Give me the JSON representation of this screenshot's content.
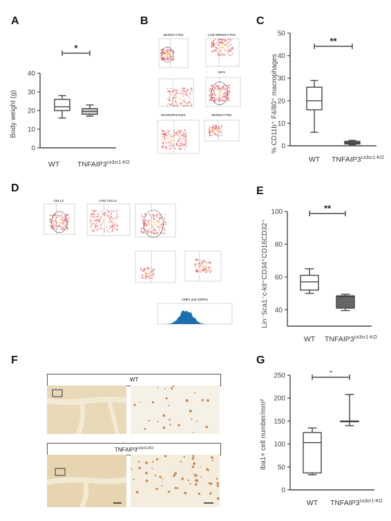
{
  "panel_labels": [
    "A",
    "B",
    "C",
    "D",
    "E",
    "F",
    "G"
  ],
  "chart_data": [
    {
      "panel": "A",
      "type": "box",
      "ylabel": "Body weight (g)",
      "ylim": [
        0,
        40
      ],
      "yticks": [
        0,
        10,
        20,
        30,
        40
      ],
      "categories": [
        "WT",
        "TNFAIP3"
      ],
      "category_superscripts": [
        "",
        "cx3cr1-KO"
      ],
      "boxes": [
        {
          "min": 16,
          "q1": 20,
          "median": 22,
          "q3": 26,
          "max": 28,
          "fill": "#ffffff"
        },
        {
          "min": 17,
          "q1": 18,
          "median": 19.5,
          "q3": 21,
          "max": 23,
          "fill": "#d0d0d0"
        }
      ],
      "significance": "*"
    },
    {
      "panel": "C",
      "type": "box",
      "ylabel": "% CD11b⁺ F4/80⁺ macrophages",
      "ylim": [
        0,
        50
      ],
      "yticks": [
        0,
        10,
        20,
        30,
        40,
        50
      ],
      "categories": [
        "WT",
        "TNFAIP3"
      ],
      "category_superscripts": [
        "",
        "cx3cr1-KO"
      ],
      "boxes": [
        {
          "min": 6,
          "q1": 16,
          "median": 20,
          "q3": 26,
          "max": 29,
          "fill": "#ffffff"
        },
        {
          "min": 0.5,
          "q1": 0.8,
          "median": 1.3,
          "q3": 2,
          "max": 2.4,
          "fill": "#666666"
        }
      ],
      "significance": "**"
    },
    {
      "panel": "E",
      "type": "box",
      "ylabel": "Lin⁻Sca1⁻c-kit⁺CD34⁺CD16CD32⁺",
      "ylim": [
        30,
        100
      ],
      "yticks": [
        40,
        60,
        80,
        100
      ],
      "categories": [
        "WT",
        "TNFAIP3"
      ],
      "category_superscripts": [
        "",
        "cx3cr1-KO"
      ],
      "boxes": [
        {
          "min": 50,
          "q1": 52,
          "median": 57,
          "q3": 61,
          "max": 65,
          "fill": "#ffffff"
        },
        {
          "min": 39.5,
          "q1": 41,
          "median": 48,
          "q3": 48.5,
          "max": 49.5,
          "fill": "#666666"
        }
      ],
      "significance": "**"
    },
    {
      "panel": "G",
      "type": "box",
      "ylabel": "Iba1+ cell number/mm²",
      "ylim": [
        0,
        250
      ],
      "yticks": [
        0,
        50,
        100,
        150,
        200,
        250
      ],
      "categories": [
        "WT",
        "TNFAIP3"
      ],
      "category_superscripts": [
        "",
        "cx3cr1-KO"
      ],
      "boxes": [
        {
          "min": 33,
          "q1": 37,
          "median": 103,
          "q3": 125,
          "max": 135,
          "fill": "#ffffff"
        },
        {
          "min": 140,
          "q1": 150,
          "median": 150,
          "q3": 150,
          "max": 208,
          "fill": "#ffffff"
        }
      ],
      "significance": "*"
    }
  ],
  "panel_b": {
    "plot_labels": [
      "MONOCYTES",
      "LIVE MONOCYTES",
      "MCS",
      "MACROPHAGES",
      "MONOCYTES"
    ]
  },
  "panel_d": {
    "plot_labels": [
      "CELLS",
      "LIVE CELLS",
      "CMPs and GMPSs"
    ]
  },
  "panel_f": {
    "header_wt": "WT",
    "header_ko": "TNFAIP3",
    "header_ko_sup": "cx3cr1-KO"
  }
}
